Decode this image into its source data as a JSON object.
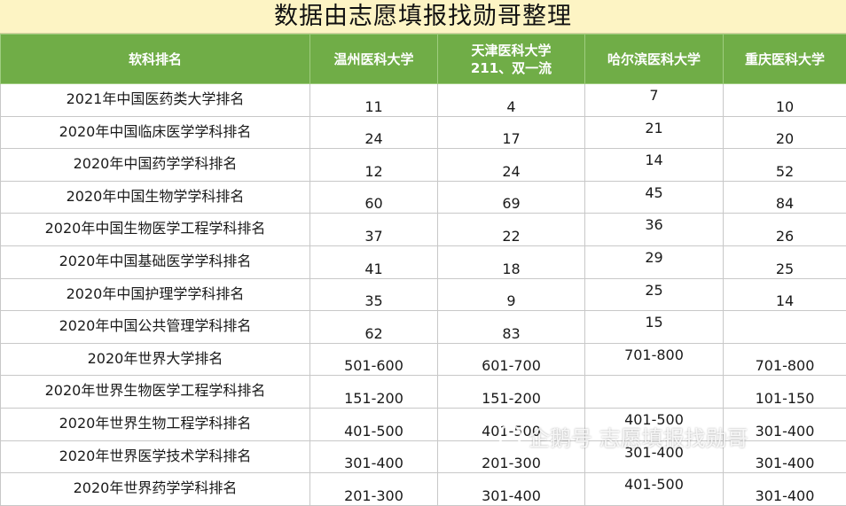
{
  "title": "数据由志愿填报找勋哥整理",
  "headers": [
    "软科排名",
    "温州医科大学",
    "天津医科大学\n211、双一流",
    "哈尔滨医科大学",
    "重庆医科大学"
  ],
  "header_tianjin_line1": "天津医科大学",
  "header_tianjin_line2": "211、双一流",
  "rows": [
    {
      "name": "2021年中国医药类大学排名",
      "wenzhou": "11",
      "tianjin": "4",
      "harbin": "7",
      "chongqing": "10"
    },
    {
      "name": "2020年中国临床医学学科排名",
      "wenzhou": "24",
      "tianjin": "17",
      "harbin": "21",
      "chongqing": "20"
    },
    {
      "name": "2020年中国药学学科排名",
      "wenzhou": "12",
      "tianjin": "24",
      "harbin": "14",
      "chongqing": "52"
    },
    {
      "name": "2020年中国生物学学科排名",
      "wenzhou": "60",
      "tianjin": "69",
      "harbin": "45",
      "chongqing": "84"
    },
    {
      "name": "2020年中国生物医学工程学科排名",
      "wenzhou": "37",
      "tianjin": "22",
      "harbin": "36",
      "chongqing": "26"
    },
    {
      "name": "2020年中国基础医学学科排名",
      "wenzhou": "41",
      "tianjin": "18",
      "harbin": "29",
      "chongqing": "25"
    },
    {
      "name": "2020年中国护理学学科排名",
      "wenzhou": "35",
      "tianjin": "9",
      "harbin": "25",
      "chongqing": "14"
    },
    {
      "name": "2020年中国公共管理学科排名",
      "wenzhou": "62",
      "tianjin": "83",
      "harbin": "15",
      "chongqing": ""
    },
    {
      "name": "2020年世界大学排名",
      "wenzhou": "501-600",
      "tianjin": "601-700",
      "harbin": "701-800",
      "chongqing": "701-800"
    },
    {
      "name": "2020年世界生物医学工程学科排名",
      "wenzhou": "151-200",
      "tianjin": "151-200",
      "harbin": "",
      "chongqing": "101-150"
    },
    {
      "name": "2020年世界生物工程学科排名",
      "wenzhou": "401-500",
      "tianjin": "401-500",
      "harbin": "401-500",
      "chongqing": "301-400"
    },
    {
      "name": "2020年世界医学技术学科排名",
      "wenzhou": "301-400",
      "tianjin": "201-300",
      "harbin": "301-400",
      "chongqing": "301-400"
    },
    {
      "name": "2020年世界药学学科排名",
      "wenzhou": "201-300",
      "tianjin": "301-400",
      "harbin": "401-500",
      "chongqing": "301-400"
    }
  ],
  "watermark": "企鹅号 志愿填报找勋哥"
}
